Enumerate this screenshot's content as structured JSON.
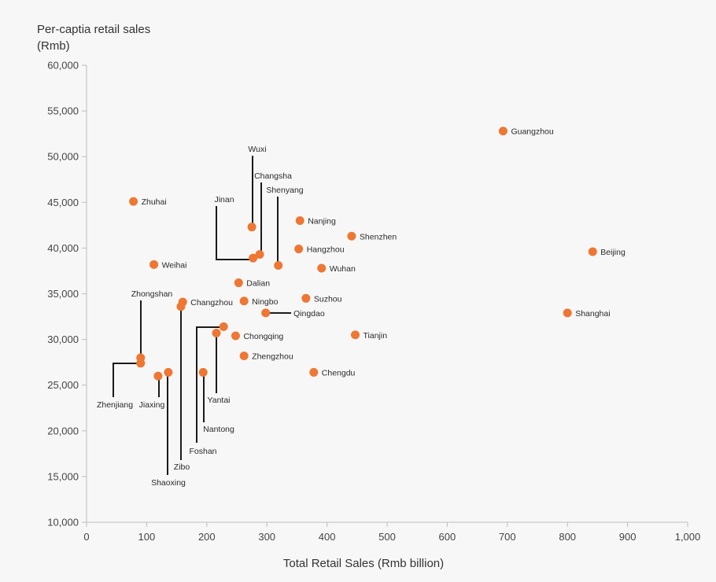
{
  "chart_data": {
    "type": "scatter",
    "ylabel_line1": "Per-captia retail sales",
    "ylabel_line2": "(Rmb)",
    "xlabel": "Total Retail Sales (Rmb billion)",
    "xlim": [
      0,
      1000
    ],
    "ylim": [
      10000,
      60000
    ],
    "x_ticks": [
      "0",
      "100",
      "200",
      "300",
      "400",
      "500",
      "600",
      "700",
      "800",
      "900",
      "1,000"
    ],
    "y_ticks": [
      "10,000",
      "15,000",
      "20,000",
      "25,000",
      "30,000",
      "35,000",
      "40,000",
      "45,000",
      "50,000",
      "55,000",
      "60,000"
    ],
    "grid": false,
    "point_color": "#ee7733",
    "points": [
      {
        "name": "Guangzhou",
        "x": 693,
        "y": 52800
      },
      {
        "name": "Beijing",
        "x": 842,
        "y": 39600
      },
      {
        "name": "Shanghai",
        "x": 800,
        "y": 32900
      },
      {
        "name": "Shenzhen",
        "x": 441,
        "y": 41300
      },
      {
        "name": "Nanjing",
        "x": 355,
        "y": 43000
      },
      {
        "name": "Hangzhou",
        "x": 353,
        "y": 39900
      },
      {
        "name": "Wuhan",
        "x": 391,
        "y": 37800
      },
      {
        "name": "Suzhou",
        "x": 365,
        "y": 34500
      },
      {
        "name": "Tianjin",
        "x": 447,
        "y": 30500
      },
      {
        "name": "Chengdu",
        "x": 378,
        "y": 26400
      },
      {
        "name": "Qingdao",
        "x": 298,
        "y": 32900
      },
      {
        "name": "Chongqing",
        "x": 248,
        "y": 30400
      },
      {
        "name": "Zhengzhou",
        "x": 262,
        "y": 28200
      },
      {
        "name": "Dalian",
        "x": 253,
        "y": 36200
      },
      {
        "name": "Ningbo",
        "x": 262,
        "y": 34200
      },
      {
        "name": "Wuxi",
        "x": 275,
        "y": 42300
      },
      {
        "name": "Changsha",
        "x": 288,
        "y": 39300
      },
      {
        "name": "Shenyang",
        "x": 319,
        "y": 38100
      },
      {
        "name": "Jinan",
        "x": 277,
        "y": 38900
      },
      {
        "name": "Zhuhai",
        "x": 78,
        "y": 45100
      },
      {
        "name": "Weihai",
        "x": 112,
        "y": 38200
      },
      {
        "name": "Changzhou",
        "x": 160,
        "y": 34100
      },
      {
        "name": "Zibo",
        "x": 157,
        "y": 33600
      },
      {
        "name": "Zhongshan",
        "x": 90,
        "y": 28000
      },
      {
        "name": "Zhenjiang",
        "x": 90,
        "y": 27400
      },
      {
        "name": "Jiaxing",
        "x": 119,
        "y": 26000
      },
      {
        "name": "Shaoxing",
        "x": 136,
        "y": 26400
      },
      {
        "name": "Nantong",
        "x": 194,
        "y": 26400
      },
      {
        "name": "Foshan",
        "x": 228,
        "y": 31400
      },
      {
        "name": "Yantai",
        "x": 216,
        "y": 30700
      }
    ]
  }
}
